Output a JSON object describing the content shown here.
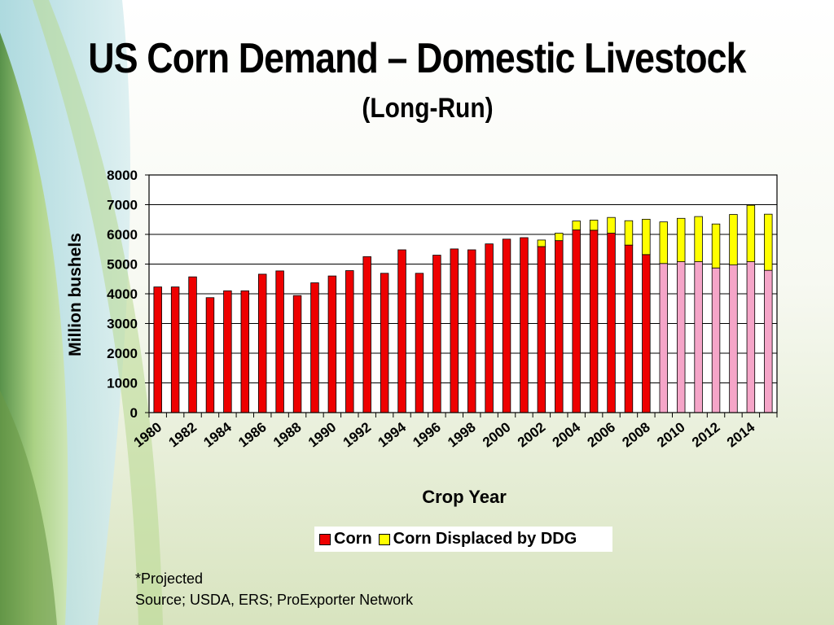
{
  "slide": {
    "title": "US Corn Demand – Domestic Livestock",
    "subtitle": "(Long-Run)",
    "note_projected": "*Projected",
    "note_source": "Source; USDA, ERS; ProExporter Network"
  },
  "colors": {
    "corn": "#ee0000",
    "ddg": "#ffff00",
    "projected": "#f5a5c8"
  },
  "chart_data": {
    "type": "bar",
    "stacked": true,
    "xlabel": "Crop Year",
    "ylabel": "Million bushels",
    "ylim": [
      0,
      8000
    ],
    "yticks": [
      0,
      1000,
      2000,
      3000,
      4000,
      5000,
      6000,
      7000,
      8000
    ],
    "grid": true,
    "legend_position": "bottom",
    "xtick_labels": [
      "1980",
      "1982",
      "1984",
      "1986",
      "1988",
      "1990",
      "1992",
      "1994",
      "1996",
      "1998",
      "2000",
      "2002",
      "2004",
      "2006",
      "2008",
      "2010",
      "2012",
      "2014"
    ],
    "categories": [
      "1980",
      "1981",
      "1982",
      "1983",
      "1984",
      "1985",
      "1986",
      "1987",
      "1988",
      "1989",
      "1990",
      "1991",
      "1992",
      "1993",
      "1994",
      "1995",
      "1996",
      "1997",
      "1998",
      "1999",
      "2000",
      "2001",
      "2002",
      "2003",
      "2004",
      "2005",
      "2006",
      "2007",
      "2008",
      "2009",
      "2010",
      "2011",
      "2012",
      "2013",
      "2014",
      "2015"
    ],
    "projected_from": "2009",
    "series": [
      {
        "name": "Corn",
        "values": [
          4230,
          4230,
          4570,
          3870,
          4100,
          4100,
          4660,
          4770,
          3940,
          4370,
          4600,
          4780,
          5250,
          4690,
          5480,
          4690,
          5300,
          5510,
          5480,
          5680,
          5840,
          5890,
          5590,
          5790,
          6150,
          6140,
          6040,
          5640,
          5320,
          5020,
          5080,
          5080,
          4870,
          4970,
          5080,
          4790
        ]
      },
      {
        "name": "Corn Displaced by DDG",
        "values": [
          0,
          0,
          0,
          0,
          0,
          0,
          0,
          0,
          0,
          0,
          0,
          0,
          0,
          0,
          0,
          0,
          0,
          0,
          0,
          0,
          0,
          0,
          220,
          250,
          300,
          340,
          530,
          820,
          1190,
          1400,
          1460,
          1520,
          1480,
          1700,
          1900,
          1890
        ]
      }
    ]
  }
}
